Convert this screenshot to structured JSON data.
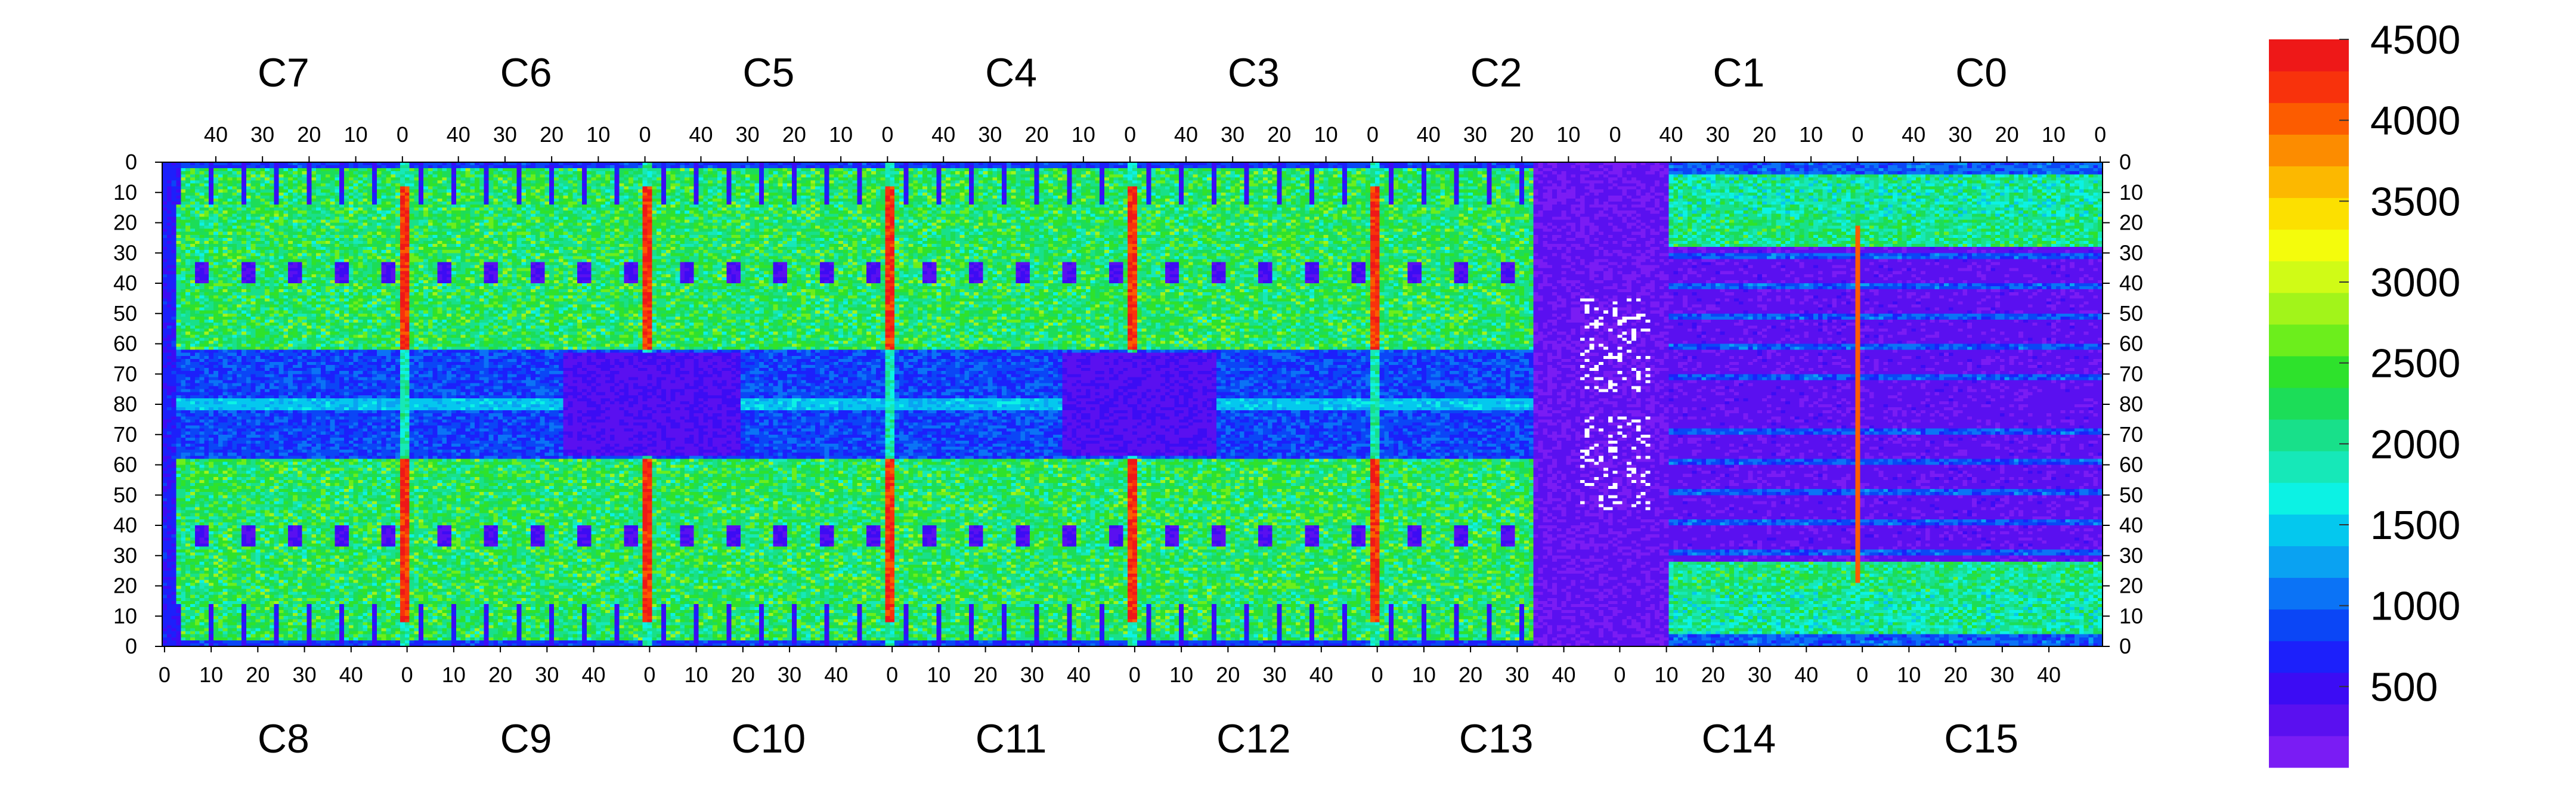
{
  "chart_data": {
    "type": "heatmap",
    "title": "",
    "xlabel": "",
    "ylabel": "",
    "top_chip_labels": [
      "C7",
      "C6",
      "C5",
      "C4",
      "C3",
      "C2",
      "C1",
      "C0"
    ],
    "bottom_chip_labels": [
      "C8",
      "C9",
      "C10",
      "C11",
      "C12",
      "C13",
      "C14",
      "C15"
    ],
    "top_x_ticks": [
      "40",
      "30",
      "20",
      "10",
      "0"
    ],
    "bottom_x_ticks": [
      "0",
      "10",
      "20",
      "30",
      "40"
    ],
    "y_ticks": [
      "0",
      "10",
      "20",
      "30",
      "40",
      "50",
      "60",
      "70",
      "80",
      "70",
      "60",
      "50",
      "40",
      "30",
      "20",
      "10",
      "0"
    ],
    "grid": {
      "chips_per_row": 8,
      "columns_per_chip": 52,
      "rows_per_half": 80,
      "x_range": [
        0,
        51
      ],
      "y_range": [
        0,
        80
      ]
    },
    "colorbar": {
      "range": [
        0,
        4500
      ],
      "ticks": [
        500,
        1000,
        1500,
        2000,
        2500,
        3000,
        3500,
        4000,
        4500
      ],
      "tick_labels": [
        "500",
        "1000",
        "1500",
        "2000",
        "2500",
        "3000",
        "3500",
        "4000",
        "4500"
      ],
      "colors": [
        "#7a1cf4",
        "#5a10f0",
        "#3c0cf4",
        "#1c20fb",
        "#0b46f6",
        "#0b73f6",
        "#0aa2f2",
        "#04c8ee",
        "#0cf2e4",
        "#16e8b8",
        "#18e08a",
        "#1cdd58",
        "#2ee22c",
        "#6cee1c",
        "#a2f41a",
        "#d0fb16",
        "#f4fc0c",
        "#fce000",
        "#fcb800",
        "#fc8c00",
        "#fc5c00",
        "#f8320c",
        "#ee1818"
      ]
    },
    "values_description": "Per-pixel hit counts (0-4500) over 16 chips C0-C15; dense region ~1500-3000, vertical chip-edge columns ~4000-4500, central wide-gap region (C13/C14) ~0-400, white pixels denote values above range."
  }
}
